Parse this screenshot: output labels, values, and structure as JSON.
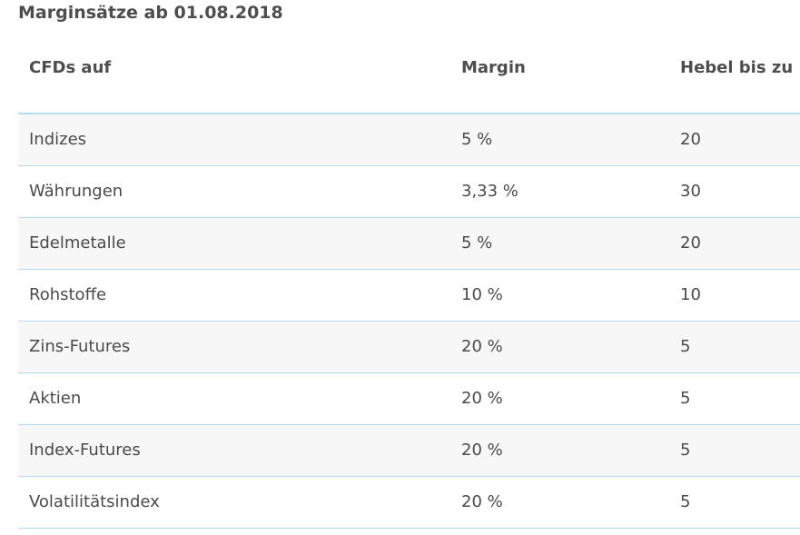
{
  "title": "Marginsätze ab 01.08.2018",
  "table": {
    "headers": [
      "CFDs auf",
      "Margin",
      "Hebel bis zu"
    ],
    "rows": [
      [
        "Indizes",
        "5 %",
        "20"
      ],
      [
        "Währungen",
        "3,33 %",
        "30"
      ],
      [
        "Edelmetalle",
        "5 %",
        "20"
      ],
      [
        "Rohstoffe",
        "10 %",
        "10"
      ],
      [
        "Zins-Futures",
        "20 %",
        "5"
      ],
      [
        "Aktien",
        "20 %",
        "5"
      ],
      [
        "Index-Futures",
        "20 %",
        "5"
      ],
      [
        "Volatilitätsindex",
        "20 %",
        "5"
      ]
    ]
  },
  "colors": {
    "row_alt_background": "#f7f7f7",
    "divider": "#b7dcef",
    "text": "#4a4a4a"
  }
}
